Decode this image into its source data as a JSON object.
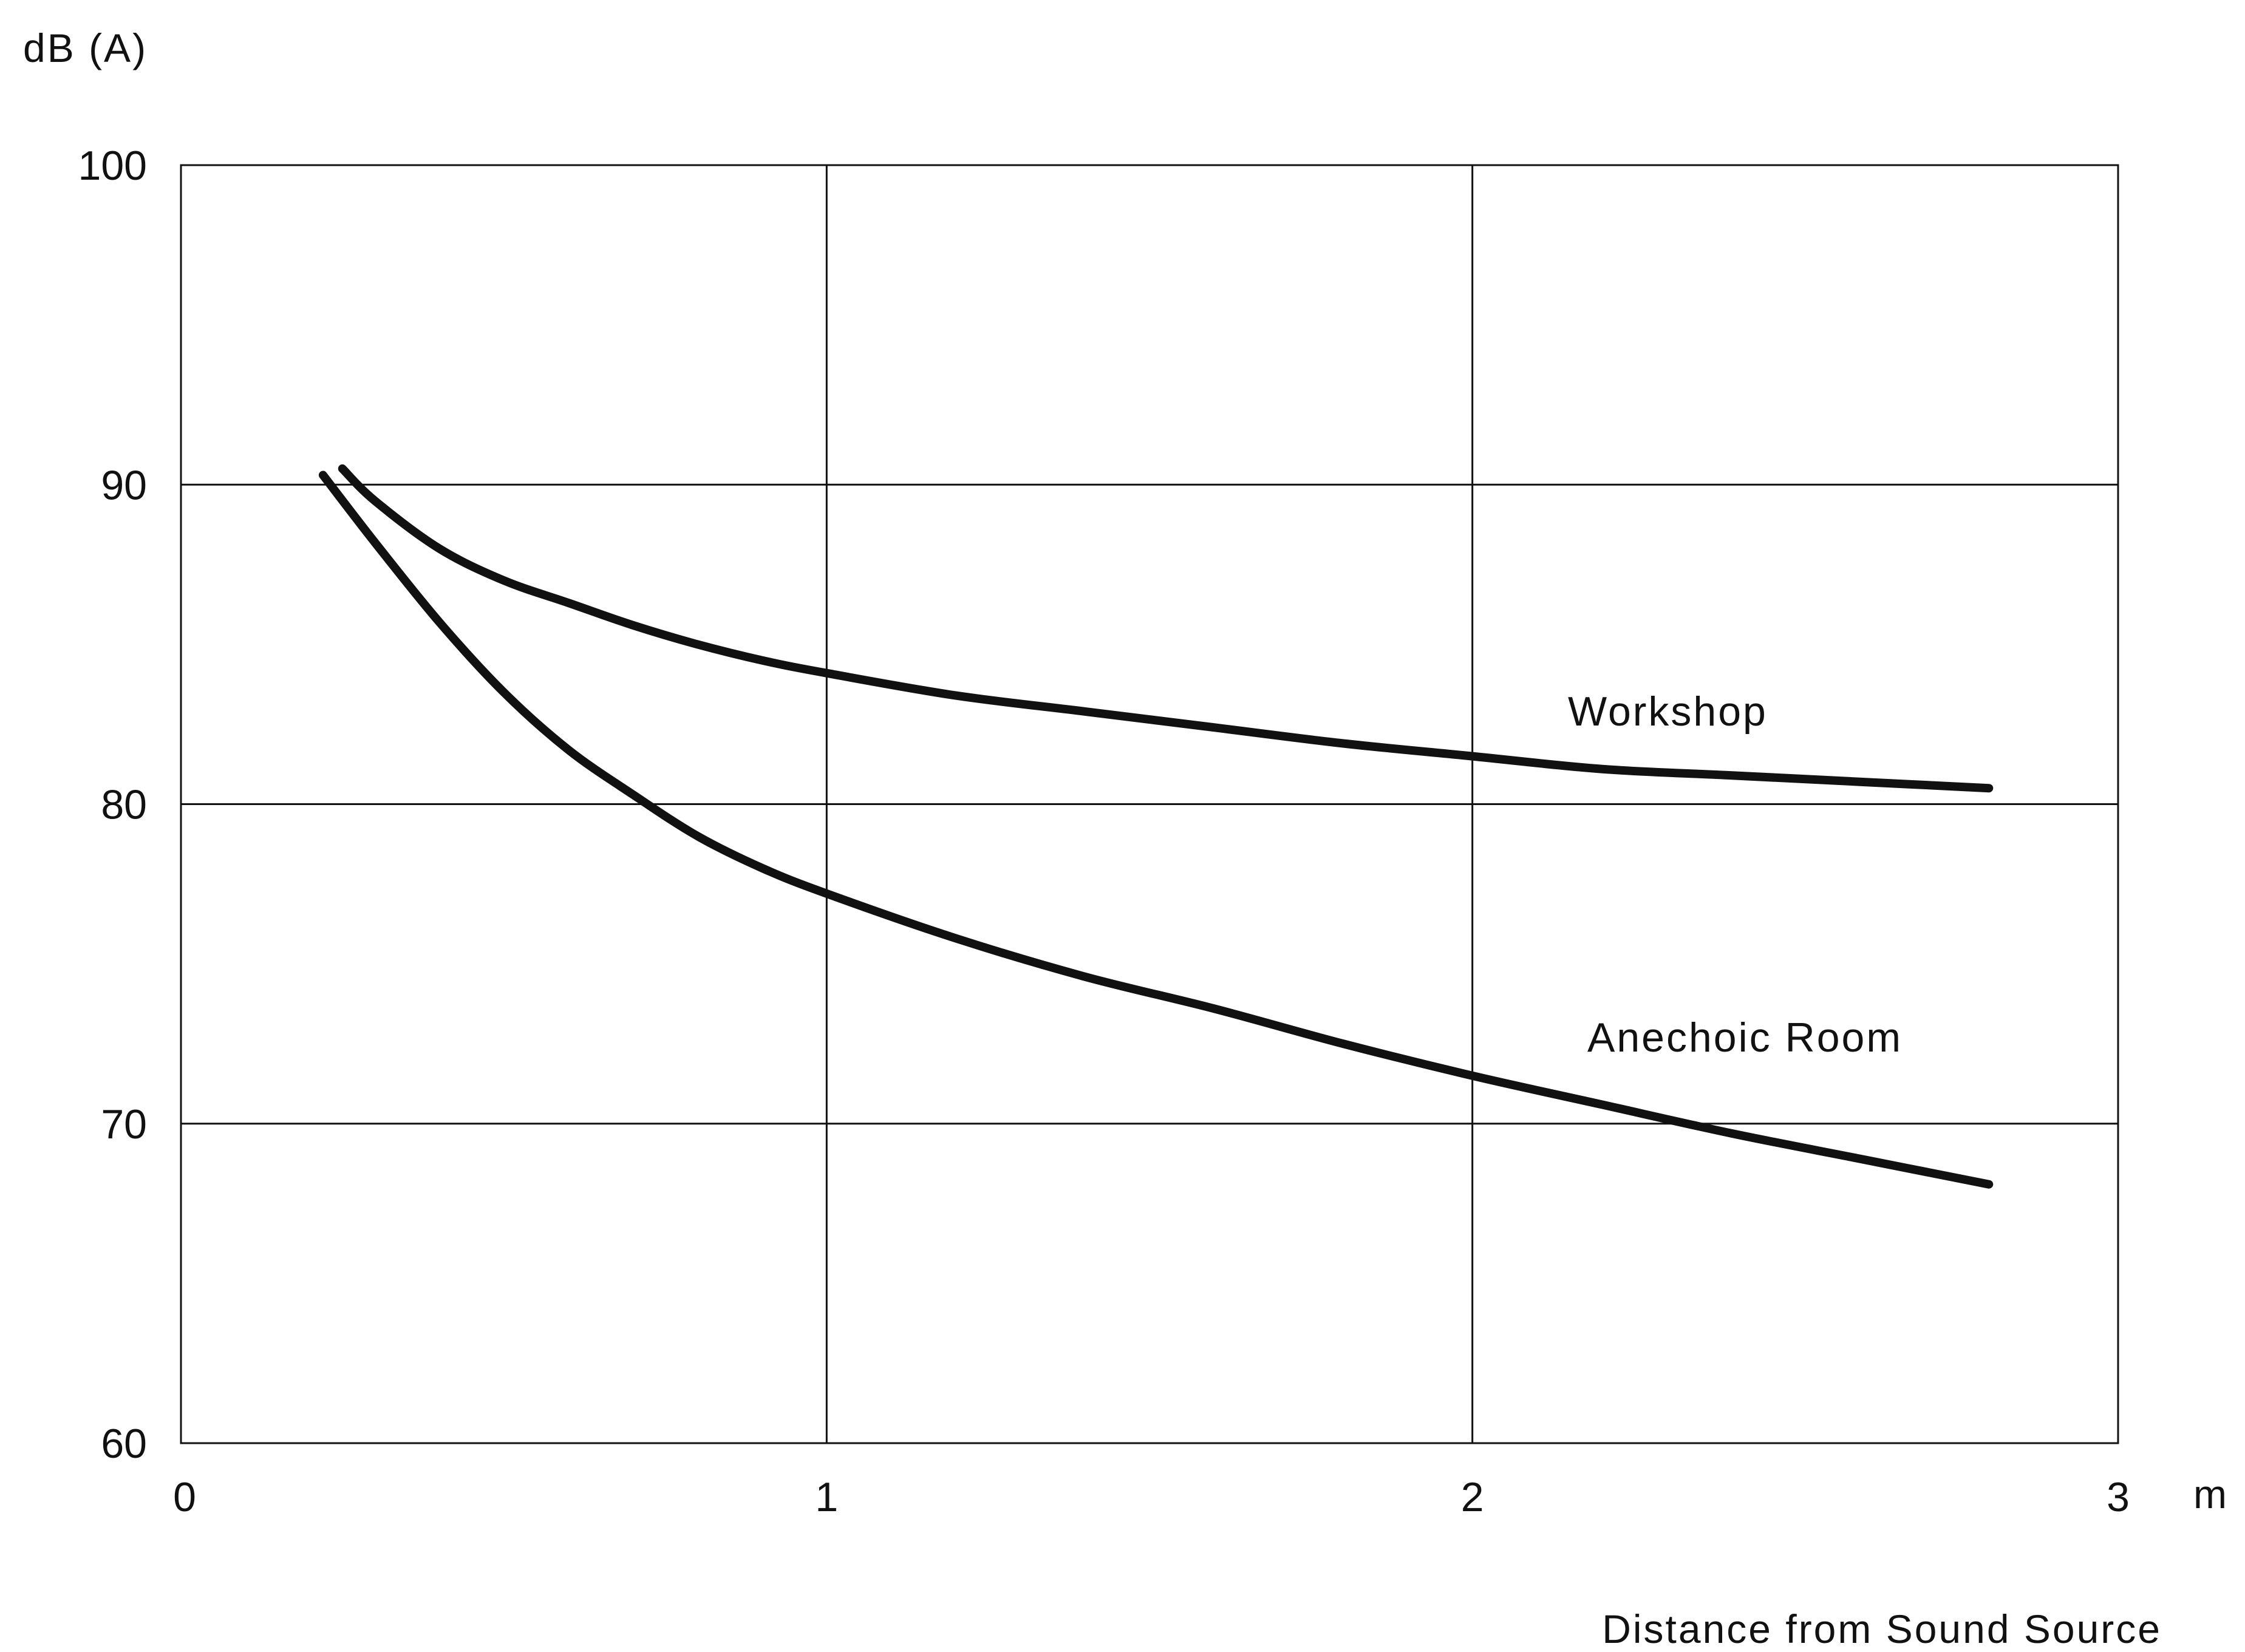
{
  "chart_data": {
    "type": "line",
    "title": "",
    "ylabel": "dB (A)",
    "xlabel": "Distance from Sound Source",
    "x_unit": "m",
    "xlim": [
      0,
      3
    ],
    "ylim": [
      60,
      100
    ],
    "x_ticks": [
      "0",
      "1",
      "2",
      "3"
    ],
    "y_ticks": [
      "60",
      "70",
      "80",
      "90",
      "100"
    ],
    "grid": true,
    "legend": "none (series labelled directly on the plot)",
    "series": [
      {
        "name": "Workshop",
        "color": "#111111",
        "x": [
          0.25,
          0.3,
          0.4,
          0.5,
          0.6,
          0.7,
          0.8,
          0.9,
          1.0,
          1.2,
          1.4,
          1.6,
          1.8,
          2.0,
          2.2,
          2.4,
          2.6,
          2.8
        ],
        "y": [
          90.5,
          89.5,
          88.0,
          87.0,
          86.3,
          85.6,
          85.0,
          84.5,
          84.1,
          83.4,
          82.9,
          82.4,
          81.9,
          81.5,
          81.1,
          80.9,
          80.7,
          80.5
        ]
      },
      {
        "name": "Anechoic Room",
        "color": "#111111",
        "x": [
          0.22,
          0.3,
          0.4,
          0.5,
          0.6,
          0.7,
          0.8,
          0.9,
          1.0,
          1.2,
          1.4,
          1.6,
          1.8,
          2.0,
          2.2,
          2.4,
          2.6,
          2.8
        ],
        "y": [
          90.3,
          88.2,
          85.7,
          83.5,
          81.7,
          80.3,
          79.0,
          78.0,
          77.2,
          75.8,
          74.6,
          73.6,
          72.5,
          71.5,
          70.6,
          69.7,
          68.9,
          68.1
        ]
      }
    ]
  }
}
